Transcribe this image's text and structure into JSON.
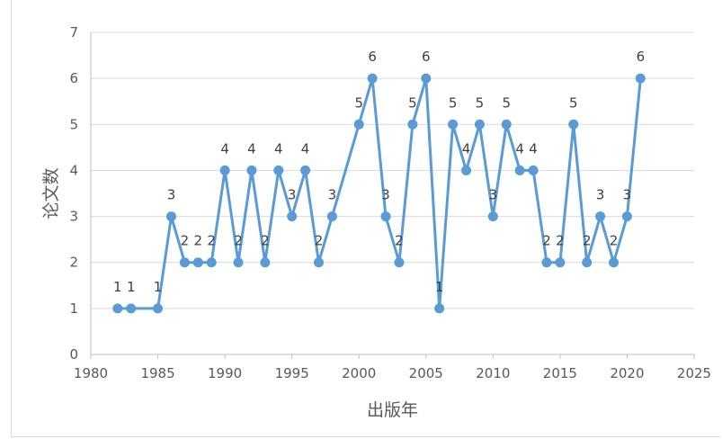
{
  "chart_data": {
    "type": "line",
    "title": "",
    "xlabel": "出版年",
    "ylabel": "论文数",
    "xlim": [
      1980,
      2025
    ],
    "ylim": [
      0,
      7
    ],
    "xticks": [
      1980,
      1985,
      1990,
      1995,
      2000,
      2005,
      2010,
      2015,
      2020,
      2025
    ],
    "yticks": [
      0,
      1,
      2,
      3,
      4,
      5,
      6,
      7
    ],
    "grid": "horizontal",
    "legend": "none",
    "data_labels": true,
    "colors": {
      "line": "#5b9bd5",
      "marker": "#5b9bd5",
      "grid": "#d9d9d9",
      "axis": "#bfbfbf"
    },
    "series": [
      {
        "x": [
          1982,
          1983,
          1985,
          1986,
          1987,
          1988,
          1989,
          1990,
          1991,
          1992,
          1993,
          1994,
          1995,
          1996,
          1997,
          1998,
          2000,
          2001,
          2002,
          2003,
          2004,
          2005,
          2006,
          2007,
          2008,
          2009,
          2010,
          2011,
          2012,
          2013,
          2014,
          2015,
          2016,
          2017,
          2018,
          2019,
          2020,
          2021
        ],
        "y": [
          1,
          1,
          1,
          3,
          2,
          2,
          2,
          4,
          2,
          4,
          2,
          4,
          3,
          4,
          2,
          3,
          5,
          6,
          3,
          2,
          5,
          6,
          1,
          5,
          4,
          5,
          3,
          5,
          4,
          4,
          2,
          2,
          5,
          2,
          3,
          2,
          3,
          6
        ]
      }
    ]
  }
}
